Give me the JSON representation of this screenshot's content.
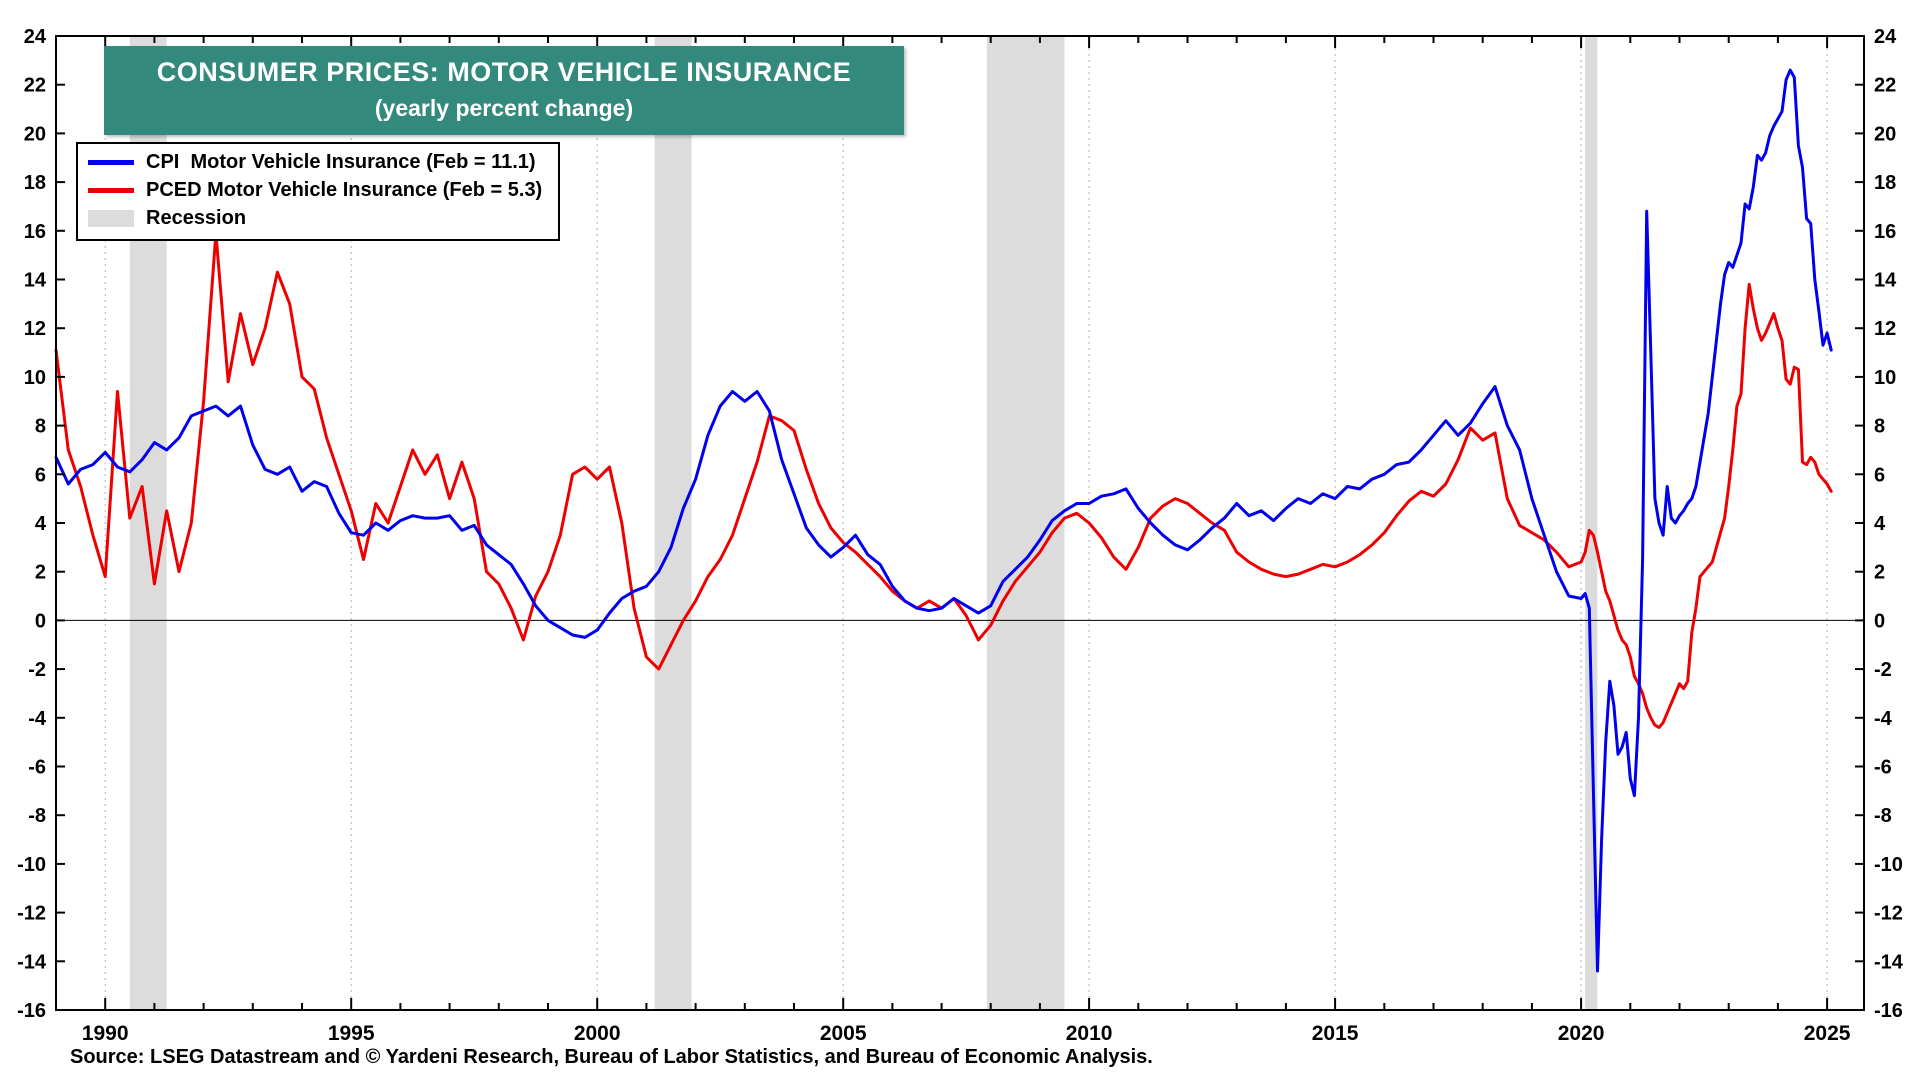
{
  "page": {
    "source_note": "Source: LSEG Datastream and © Yardeni Research, Bureau of Labor Statistics, and Bureau of Economic Analysis."
  },
  "colors": {
    "title_bg": "#338a7c",
    "cpi_line": "#0000ee",
    "pced_line": "#ee0000",
    "recession_band": "#dcdcdc",
    "grid": "#b0b0b0",
    "frame": "#000000"
  },
  "chart_data": {
    "type": "line",
    "title": "CONSUMER PRICES: MOTOR VEHICLE INSURANCE",
    "subtitle": "(yearly percent change)",
    "xlabel": "",
    "ylabel": "",
    "xlim": [
      1989.0,
      2025.75
    ],
    "ylim": [
      -16,
      24
    ],
    "ytick_step": 2,
    "xticks_labeled": [
      1990,
      1995,
      2000,
      2005,
      2010,
      2015,
      2020,
      2025
    ],
    "x_minor_step": 1,
    "grid": {
      "vertical_at": [
        1990,
        1995,
        2000,
        2005,
        2010,
        2015,
        2020,
        2025
      ],
      "zero_line": true
    },
    "legend_position": "top-left",
    "legend": [
      {
        "label": "CPI  Motor Vehicle Insurance (Feb = 11.1)",
        "color": "#0000ee",
        "type": "line"
      },
      {
        "label": "PCED Motor Vehicle Insurance (Feb = 5.3)",
        "color": "#ee0000",
        "type": "line"
      },
      {
        "label": "Recession",
        "color": "#dcdcdc",
        "type": "band"
      }
    ],
    "recession_bands": [
      [
        1990.5,
        1991.25
      ],
      [
        2001.17,
        2001.92
      ],
      [
        2007.92,
        2009.5
      ],
      [
        2020.08,
        2020.33
      ]
    ],
    "x": [
      1989.0,
      1989.25,
      1989.5,
      1989.75,
      1990.0,
      1990.25,
      1990.5,
      1990.75,
      1991.0,
      1991.25,
      1991.5,
      1991.75,
      1992.0,
      1992.25,
      1992.5,
      1992.75,
      1993.0,
      1993.25,
      1993.5,
      1993.75,
      1994.0,
      1994.25,
      1994.5,
      1994.75,
      1995.0,
      1995.25,
      1995.5,
      1995.75,
      1996.0,
      1996.25,
      1996.5,
      1996.75,
      1997.0,
      1997.25,
      1997.5,
      1997.75,
      1998.0,
      1998.25,
      1998.5,
      1998.75,
      1999.0,
      1999.25,
      1999.5,
      1999.75,
      2000.0,
      2000.25,
      2000.5,
      2000.75,
      2001.0,
      2001.25,
      2001.5,
      2001.75,
      2002.0,
      2002.25,
      2002.5,
      2002.75,
      2003.0,
      2003.25,
      2003.5,
      2003.75,
      2004.0,
      2004.25,
      2004.5,
      2004.75,
      2005.0,
      2005.25,
      2005.5,
      2005.75,
      2006.0,
      2006.25,
      2006.5,
      2006.75,
      2007.0,
      2007.25,
      2007.5,
      2007.75,
      2008.0,
      2008.25,
      2008.5,
      2008.75,
      2009.0,
      2009.25,
      2009.5,
      2009.75,
      2010.0,
      2010.25,
      2010.5,
      2010.75,
      2011.0,
      2011.25,
      2011.5,
      2011.75,
      2012.0,
      2012.25,
      2012.5,
      2012.75,
      2013.0,
      2013.25,
      2013.5,
      2013.75,
      2014.0,
      2014.25,
      2014.5,
      2014.75,
      2015.0,
      2015.25,
      2015.5,
      2015.75,
      2016.0,
      2016.25,
      2016.5,
      2016.75,
      2017.0,
      2017.25,
      2017.5,
      2017.75,
      2018.0,
      2018.25,
      2018.5,
      2018.75,
      2019.0,
      2019.25,
      2019.5,
      2019.75,
      2020.0,
      2020.083,
      2020.167,
      2020.25,
      2020.333,
      2020.417,
      2020.5,
      2020.583,
      2020.667,
      2020.75,
      2020.833,
      2020.917,
      2021.0,
      2021.083,
      2021.167,
      2021.25,
      2021.333,
      2021.417,
      2021.5,
      2021.583,
      2021.667,
      2021.75,
      2021.833,
      2021.917,
      2022.0,
      2022.083,
      2022.167,
      2022.25,
      2022.333,
      2022.417,
      2022.5,
      2022.583,
      2022.667,
      2022.75,
      2022.833,
      2022.917,
      2023.0,
      2023.083,
      2023.167,
      2023.25,
      2023.333,
      2023.417,
      2023.5,
      2023.583,
      2023.667,
      2023.75,
      2023.833,
      2023.917,
      2024.0,
      2024.083,
      2024.167,
      2024.25,
      2024.333,
      2024.417,
      2024.5,
      2024.583,
      2024.667,
      2024.75,
      2024.833,
      2024.917,
      2025.0,
      2025.083
    ],
    "series": [
      {
        "name": "CPI Motor Vehicle Insurance",
        "color": "#0000ee",
        "values": [
          6.7,
          5.6,
          6.2,
          6.4,
          6.9,
          6.3,
          6.1,
          6.6,
          7.3,
          7.0,
          7.5,
          8.4,
          8.6,
          8.8,
          8.4,
          8.8,
          7.2,
          6.2,
          6.0,
          6.3,
          5.3,
          5.7,
          5.5,
          4.4,
          3.6,
          3.5,
          4.0,
          3.7,
          4.1,
          4.3,
          4.2,
          4.2,
          4.3,
          3.7,
          3.9,
          3.1,
          2.7,
          2.3,
          1.5,
          0.6,
          0.0,
          -0.3,
          -0.6,
          -0.7,
          -0.4,
          0.3,
          0.9,
          1.2,
          1.4,
          2.0,
          3.0,
          4.6,
          5.8,
          7.6,
          8.8,
          9.4,
          9.0,
          9.4,
          8.6,
          6.6,
          5.2,
          3.8,
          3.1,
          2.6,
          3.0,
          3.5,
          2.7,
          2.3,
          1.4,
          0.8,
          0.5,
          0.4,
          0.5,
          0.9,
          0.6,
          0.3,
          0.6,
          1.6,
          2.1,
          2.6,
          3.3,
          4.1,
          4.5,
          4.8,
          4.8,
          5.1,
          5.2,
          5.4,
          4.6,
          4.0,
          3.5,
          3.1,
          2.9,
          3.3,
          3.8,
          4.2,
          4.8,
          4.3,
          4.5,
          4.1,
          4.6,
          5.0,
          4.8,
          5.2,
          5.0,
          5.5,
          5.4,
          5.8,
          6.0,
          6.4,
          6.5,
          7.0,
          7.6,
          8.2,
          7.6,
          8.1,
          8.9,
          9.6,
          8.0,
          7.0,
          5.0,
          3.5,
          2.0,
          1.0,
          0.9,
          1.1,
          0.5,
          -7.0,
          -14.4,
          -9.0,
          -5.0,
          -2.5,
          -3.5,
          -5.5,
          -5.2,
          -4.6,
          -6.5,
          -7.2,
          -4.0,
          2.5,
          16.8,
          11.0,
          5.0,
          4.0,
          3.5,
          5.5,
          4.2,
          4.0,
          4.3,
          4.5,
          4.8,
          5.0,
          5.5,
          6.5,
          7.5,
          8.5,
          10.0,
          11.5,
          13.0,
          14.2,
          14.7,
          14.5,
          15.0,
          15.5,
          17.1,
          16.9,
          17.8,
          19.1,
          18.9,
          19.2,
          19.9,
          20.3,
          20.6,
          20.9,
          22.2,
          22.6,
          22.3,
          19.5,
          18.6,
          16.5,
          16.3,
          14.0,
          12.7,
          11.3,
          11.8,
          11.1
        ]
      },
      {
        "name": "PCED Motor Vehicle Insurance",
        "color": "#ee0000",
        "values": [
          11.1,
          7.0,
          5.5,
          3.5,
          1.8,
          9.4,
          4.2,
          5.5,
          1.5,
          4.5,
          2.0,
          4.0,
          9.0,
          15.9,
          9.8,
          12.6,
          10.5,
          12.0,
          14.3,
          13.0,
          10.0,
          9.5,
          7.5,
          6.0,
          4.5,
          2.5,
          4.8,
          4.0,
          5.5,
          7.0,
          6.0,
          6.8,
          5.0,
          6.5,
          5.0,
          2.0,
          1.5,
          0.5,
          -0.8,
          1.0,
          2.0,
          3.5,
          6.0,
          6.3,
          5.8,
          6.3,
          4.0,
          0.5,
          -1.5,
          -2.0,
          -1.0,
          0.0,
          0.8,
          1.8,
          2.5,
          3.5,
          5.0,
          6.5,
          8.4,
          8.2,
          7.8,
          6.2,
          4.8,
          3.8,
          3.2,
          2.8,
          2.3,
          1.8,
          1.2,
          0.8,
          0.5,
          0.8,
          0.5,
          0.9,
          0.2,
          -0.8,
          -0.2,
          0.8,
          1.6,
          2.2,
          2.8,
          3.6,
          4.2,
          4.4,
          4.0,
          3.4,
          2.6,
          2.1,
          3.0,
          4.2,
          4.7,
          5.0,
          4.8,
          4.4,
          4.0,
          3.7,
          2.8,
          2.4,
          2.1,
          1.9,
          1.8,
          1.9,
          2.1,
          2.3,
          2.2,
          2.4,
          2.7,
          3.1,
          3.6,
          4.3,
          4.9,
          5.3,
          5.1,
          5.6,
          6.6,
          7.9,
          7.4,
          7.7,
          5.0,
          3.9,
          3.6,
          3.3,
          2.8,
          2.2,
          2.4,
          2.8,
          3.7,
          3.5,
          2.8,
          2.0,
          1.2,
          0.8,
          0.2,
          -0.4,
          -0.8,
          -1.0,
          -1.5,
          -2.3,
          -2.6,
          -3.0,
          -3.6,
          -4.0,
          -4.3,
          -4.4,
          -4.2,
          -3.8,
          -3.4,
          -3.0,
          -2.6,
          -2.8,
          -2.5,
          -0.5,
          0.5,
          1.8,
          2.0,
          2.2,
          2.4,
          3.0,
          3.6,
          4.2,
          5.5,
          7.0,
          8.8,
          9.3,
          12.0,
          13.8,
          12.8,
          12.0,
          11.5,
          11.8,
          12.2,
          12.6,
          12.0,
          11.5,
          9.9,
          9.7,
          10.4,
          10.3,
          6.5,
          6.4,
          6.7,
          6.5,
          6.0,
          5.8,
          5.6,
          5.3
        ]
      }
    ]
  }
}
